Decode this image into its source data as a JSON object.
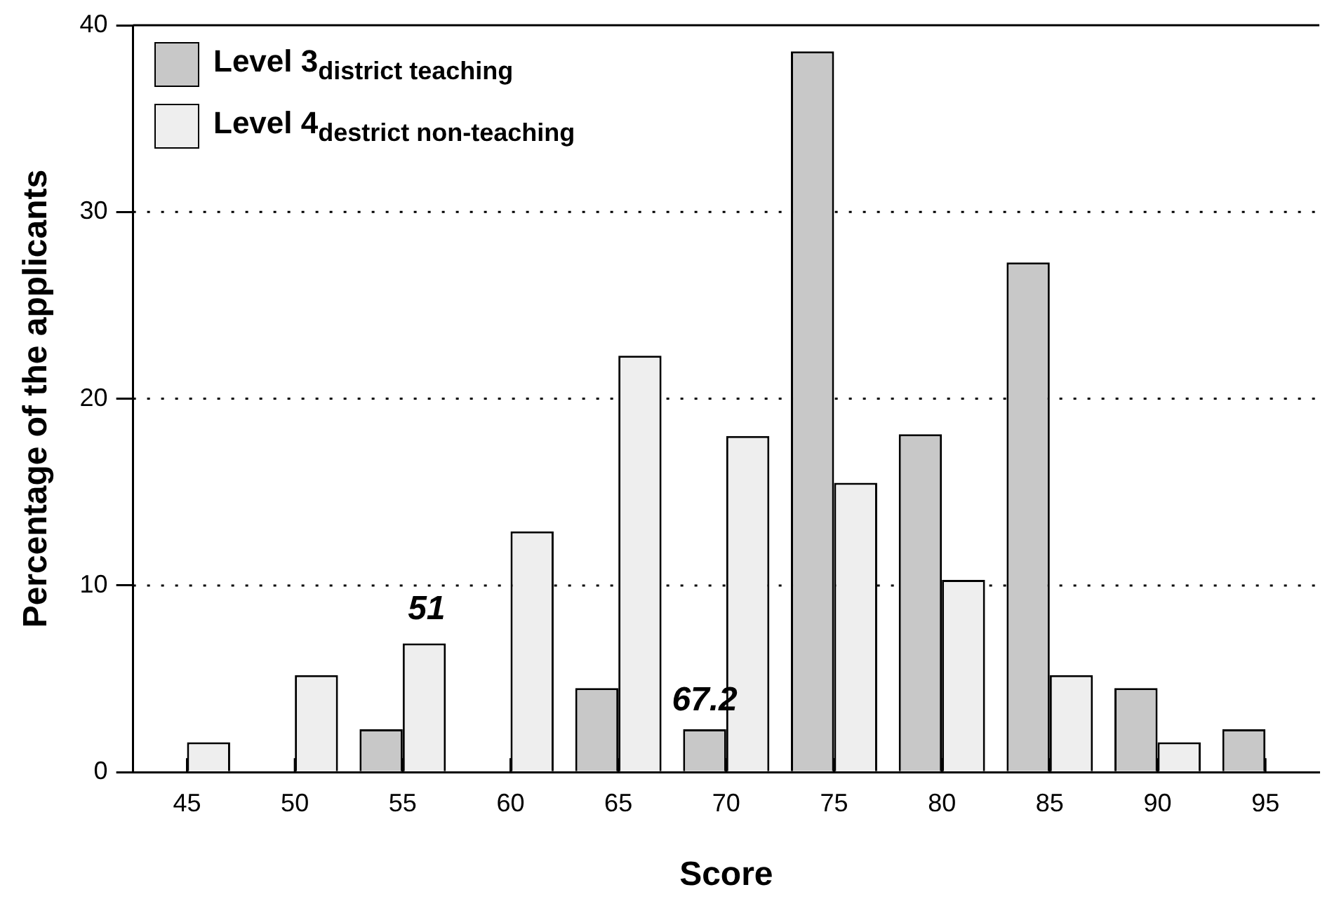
{
  "chart_data": {
    "type": "bar",
    "xlabel": "Score",
    "ylabel": "Percentage of the applicants",
    "categories": [
      "45",
      "50",
      "55",
      "60",
      "65",
      "70",
      "75",
      "80",
      "85",
      "90",
      "95"
    ],
    "series": [
      {
        "name": "Level 3$_{district teaching}$",
        "color": "#c8c8c8",
        "values": [
          null,
          null,
          2.3,
          null,
          4.5,
          2.3,
          38.6,
          18.1,
          27.3,
          4.5,
          2.3
        ]
      },
      {
        "name": "Level 4$_{destrict non-teaching}$",
        "color": "#eeeeee",
        "values": [
          1.6,
          5.2,
          6.9,
          12.9,
          22.3,
          18.0,
          15.5,
          10.3,
          5.2,
          1.6,
          null
        ]
      }
    ],
    "ylim": [
      0,
      40
    ],
    "yticks": [
      0,
      10,
      20,
      30,
      40
    ],
    "grid": "y",
    "legend": "top left",
    "annotations": [
      {
        "text": "51",
        "x": "55",
        "y": 6.9
      },
      {
        "text": "67.2",
        "x": "70",
        "y": 2.3
      }
    ]
  }
}
